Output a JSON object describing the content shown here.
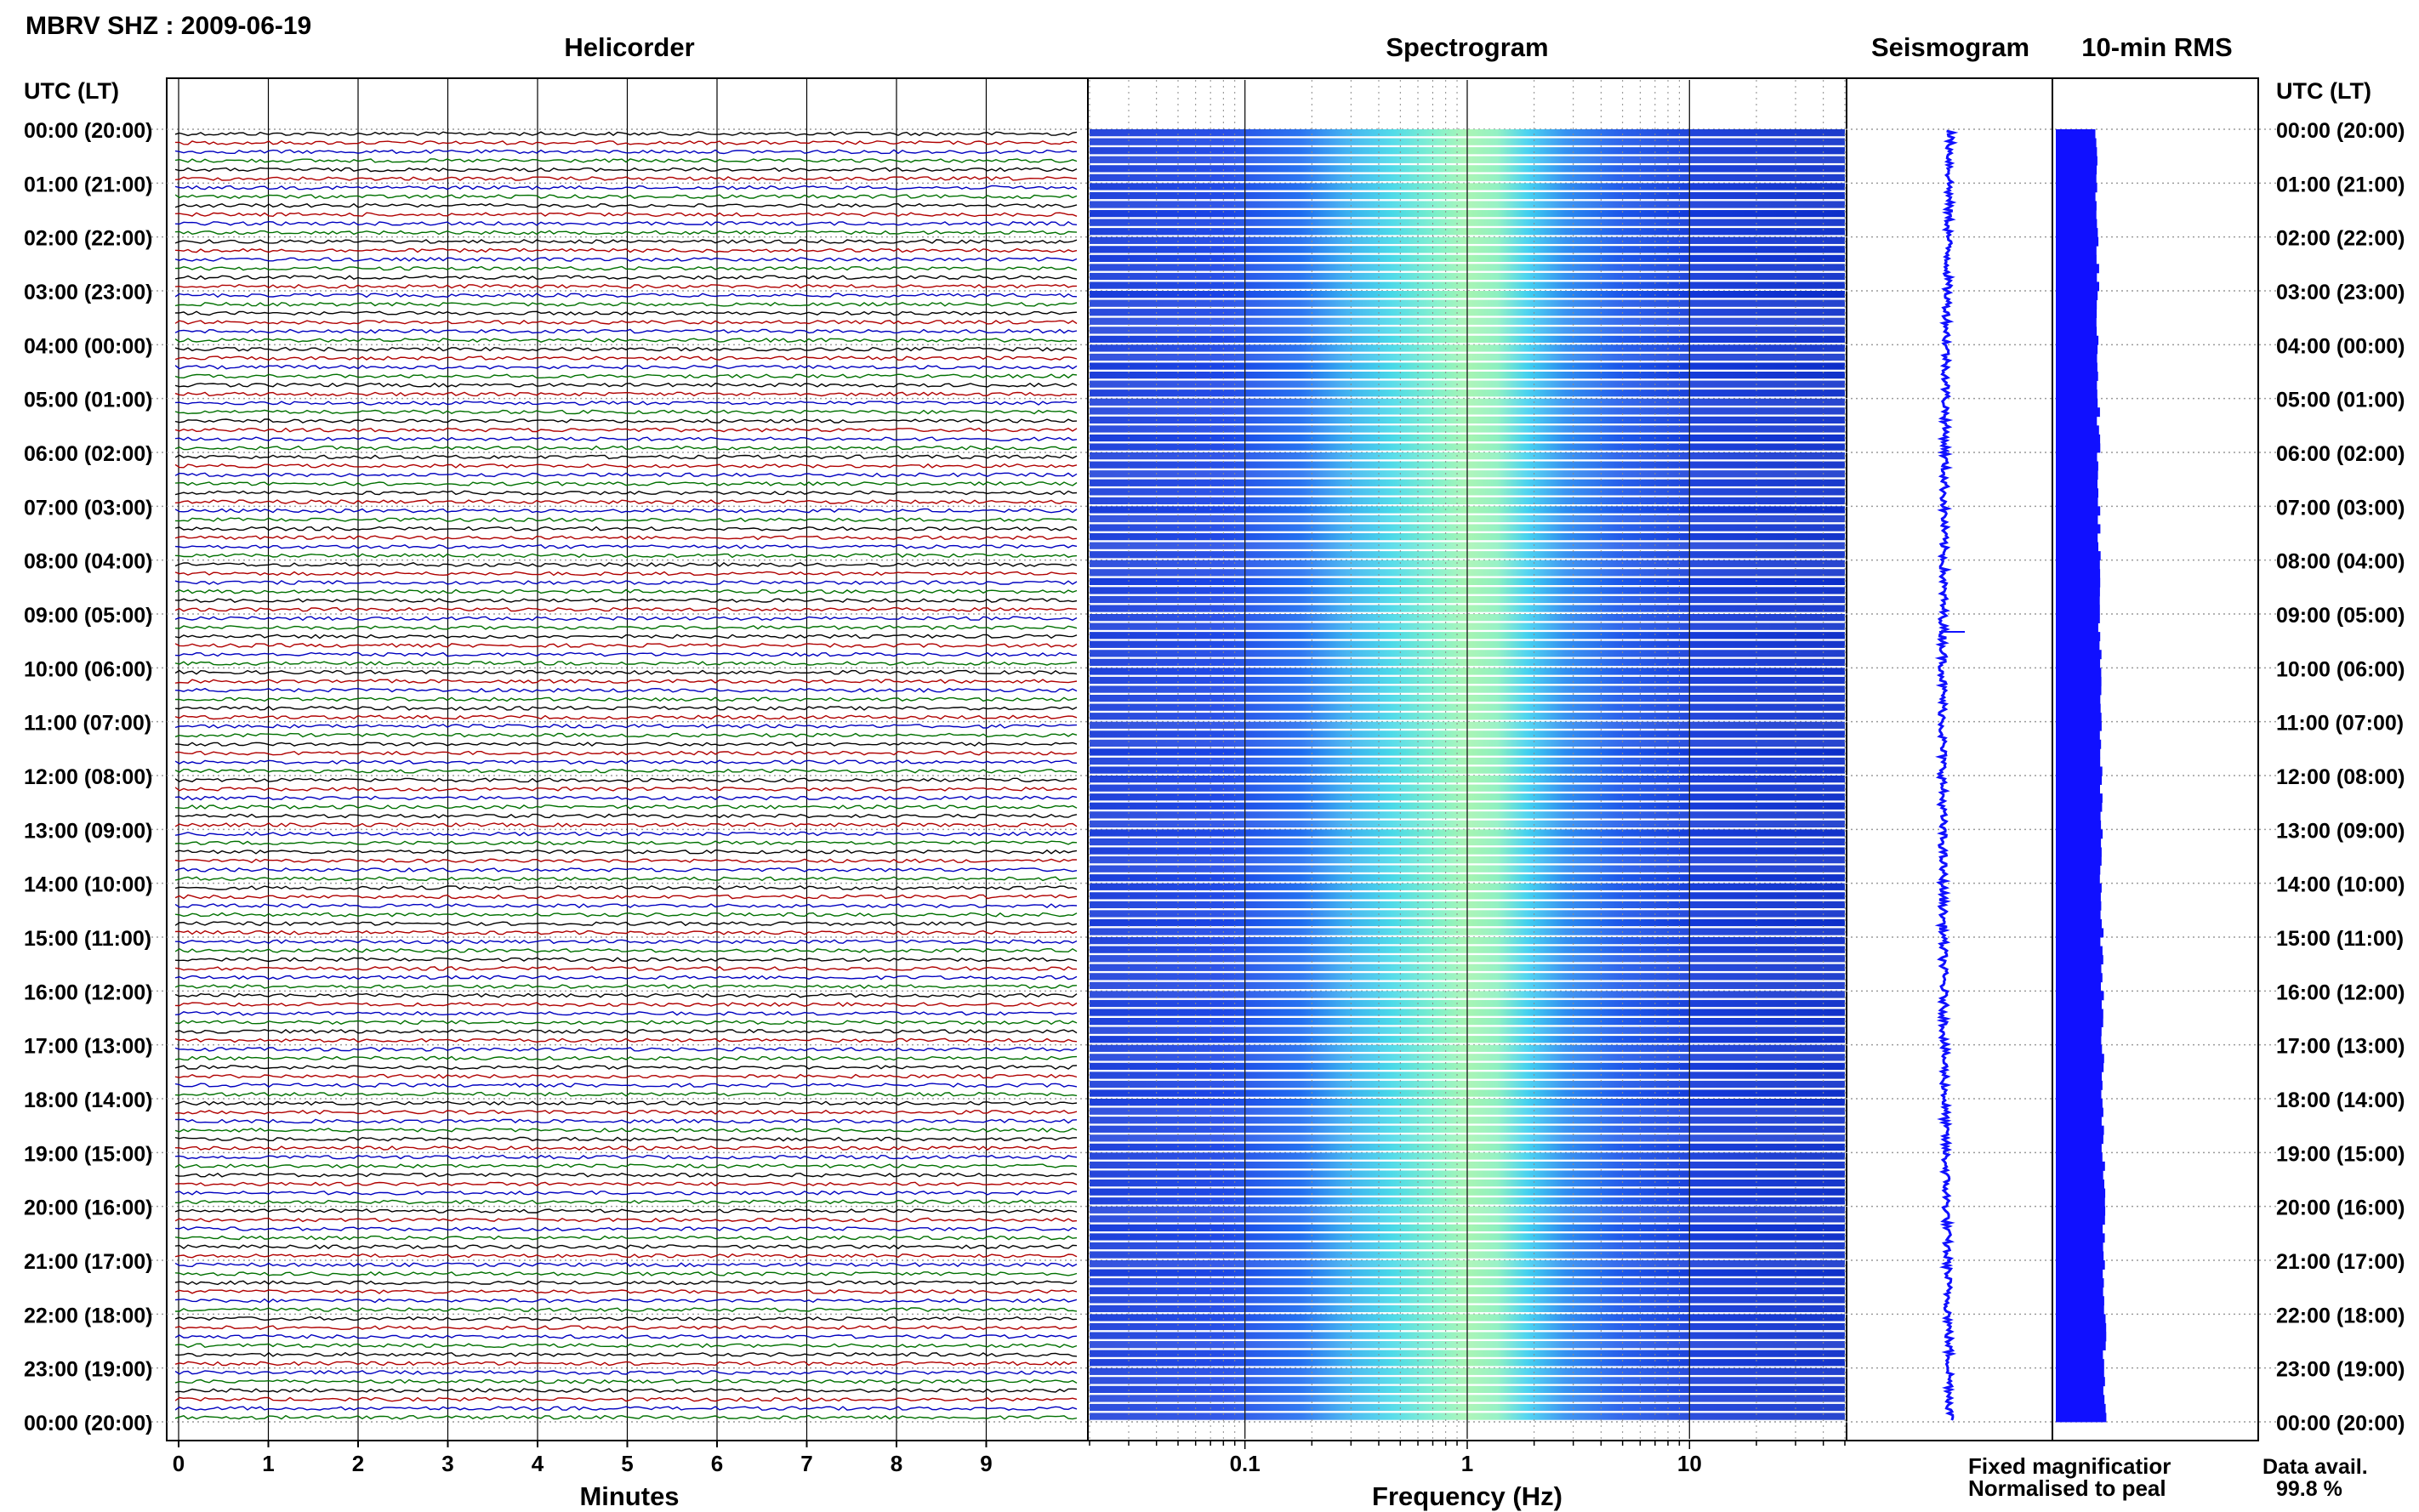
{
  "station_title": "MBRV SHZ : 2009-06-19",
  "panels": {
    "helicorder": "Helicorder",
    "spectrogram": "Spectrogram",
    "seismogram": "Seismogram",
    "rms": "10-min RMS"
  },
  "axis_header_left": "UTC (LT)",
  "axis_header_right": "UTC (LT)",
  "time_labels": [
    "00:00 (20:00)",
    "01:00 (21:00)",
    "02:00 (22:00)",
    "03:00 (23:00)",
    "04:00 (00:00)",
    "05:00 (01:00)",
    "06:00 (02:00)",
    "07:00 (03:00)",
    "08:00 (04:00)",
    "09:00 (05:00)",
    "10:00 (06:00)",
    "11:00 (07:00)",
    "12:00 (08:00)",
    "13:00 (09:00)",
    "14:00 (10:00)",
    "15:00 (11:00)",
    "16:00 (12:00)",
    "17:00 (13:00)",
    "18:00 (14:00)",
    "19:00 (15:00)",
    "20:00 (16:00)",
    "21:00 (17:00)",
    "22:00 (18:00)",
    "23:00 (19:00)",
    "00:00 (20:00)"
  ],
  "minutes_ticks": [
    "0",
    "1",
    "2",
    "3",
    "4",
    "5",
    "6",
    "7",
    "8",
    "9"
  ],
  "minutes_label": "Minutes",
  "freq_ticks": [
    "0.1",
    "1",
    "10"
  ],
  "freq_label": "Frequency (Hz)",
  "legend": {
    "fixed": "Fixed magnificatior",
    "fixed_color": "#1010ff",
    "normalised": "Normalised to peal",
    "normalised_color": "#ff0000"
  },
  "data_avail": {
    "label": "Data avail.",
    "value": "99.8 %"
  },
  "trace_colors": [
    "#000000",
    "#b00000",
    "#0000c0",
    "#007000"
  ],
  "chart_data": {
    "type": "heatmap",
    "x_minutes_range": [
      0,
      10
    ],
    "freq_range_hz": [
      0.02,
      50
    ],
    "freq_scale": "log",
    "hours": 24,
    "traces_per_hour": 6,
    "grid": true
  }
}
